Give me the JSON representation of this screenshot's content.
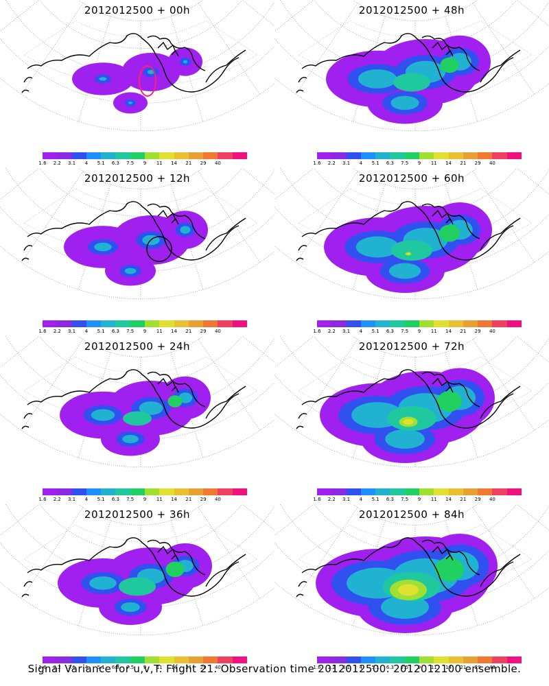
{
  "colorbar": {
    "colors": [
      "#a020f0",
      "#8a2be2",
      "#3050f0",
      "#1e90ff",
      "#20b2d0",
      "#20c8a0",
      "#20d060",
      "#a0e030",
      "#e0e030",
      "#e8c030",
      "#e8a030",
      "#f07830",
      "#f04060",
      "#f01080"
    ],
    "ticks": [
      "1.6",
      "2.2",
      "3.1",
      "4",
      "5.1",
      "6.3",
      "7.5",
      "9",
      "11",
      "14",
      "21",
      "29",
      "40"
    ]
  },
  "panels": [
    {
      "title": "2012012500 + 00h",
      "coverage": 0.25,
      "peak": 0.15,
      "centre": 0.0,
      "ring": true
    },
    {
      "title": "2012012500 + 12h",
      "coverage": 0.45,
      "peak": 0.25,
      "centre": 0.0,
      "circle": true
    },
    {
      "title": "2012012500 + 24h",
      "coverage": 0.55,
      "peak": 0.35,
      "centre": 0.0
    },
    {
      "title": "2012012500 + 36h",
      "coverage": 0.6,
      "peak": 0.45,
      "centre": 0.0
    },
    {
      "title": "2012012500 + 48h",
      "coverage": 0.75,
      "peak": 0.45,
      "centre": 0.0
    },
    {
      "title": "2012012500 + 60h",
      "coverage": 0.8,
      "peak": 0.5,
      "centre": 0.1
    },
    {
      "title": "2012012500 + 72h",
      "coverage": 0.9,
      "peak": 0.6,
      "centre": 0.3
    },
    {
      "title": "2012012500 + 84h",
      "coverage": 1.0,
      "peak": 0.7,
      "centre": 0.6
    }
  ],
  "footer": "Signal Variance for u,v,T. Flight 21. Observation time 2012012500. 2012012100 ensemble."
}
